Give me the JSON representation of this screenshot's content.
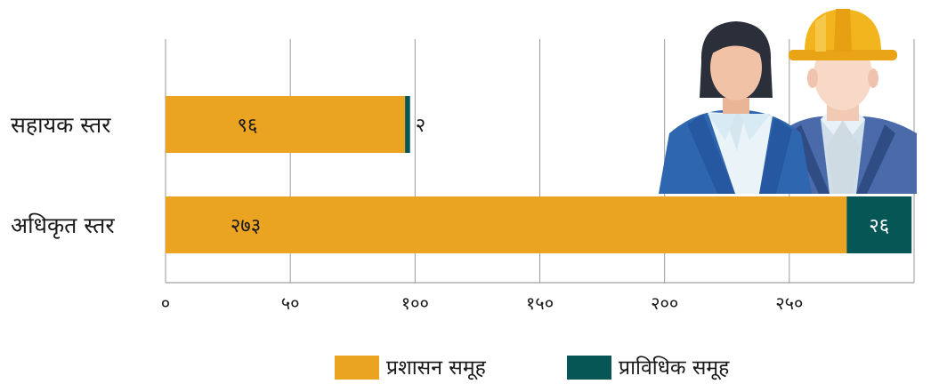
{
  "colors": {
    "series_admin": "#EBA421",
    "series_tech": "#065656",
    "grid": "#9a9a9a",
    "axis": "#8a8a8a"
  },
  "chart_data": {
    "type": "bar",
    "orientation": "horizontal",
    "stacked": true,
    "categories": [
      "सहायक स्तर",
      "अधिकृत स्तर"
    ],
    "series": [
      {
        "name": "प्रशासन समूह",
        "values": [
          96,
          273
        ],
        "labels": [
          "९६",
          "२७३"
        ]
      },
      {
        "name": "प्राविधिक समूह",
        "values": [
          2,
          26
        ],
        "labels": [
          "२",
          "२६"
        ]
      }
    ],
    "xlim": [
      0,
      300
    ],
    "xticks": [
      0,
      50,
      100,
      150,
      200,
      250,
      300
    ],
    "xtick_labels": [
      "०",
      "५०",
      "१००",
      "१५०",
      "२००",
      "२५०",
      ""
    ],
    "grid": true,
    "legend": "bottom",
    "title": "",
    "xlabel": "",
    "ylabel": ""
  },
  "illustration": {
    "icons": [
      "businesswoman-icon",
      "engineer-with-hardhat-icon"
    ]
  }
}
